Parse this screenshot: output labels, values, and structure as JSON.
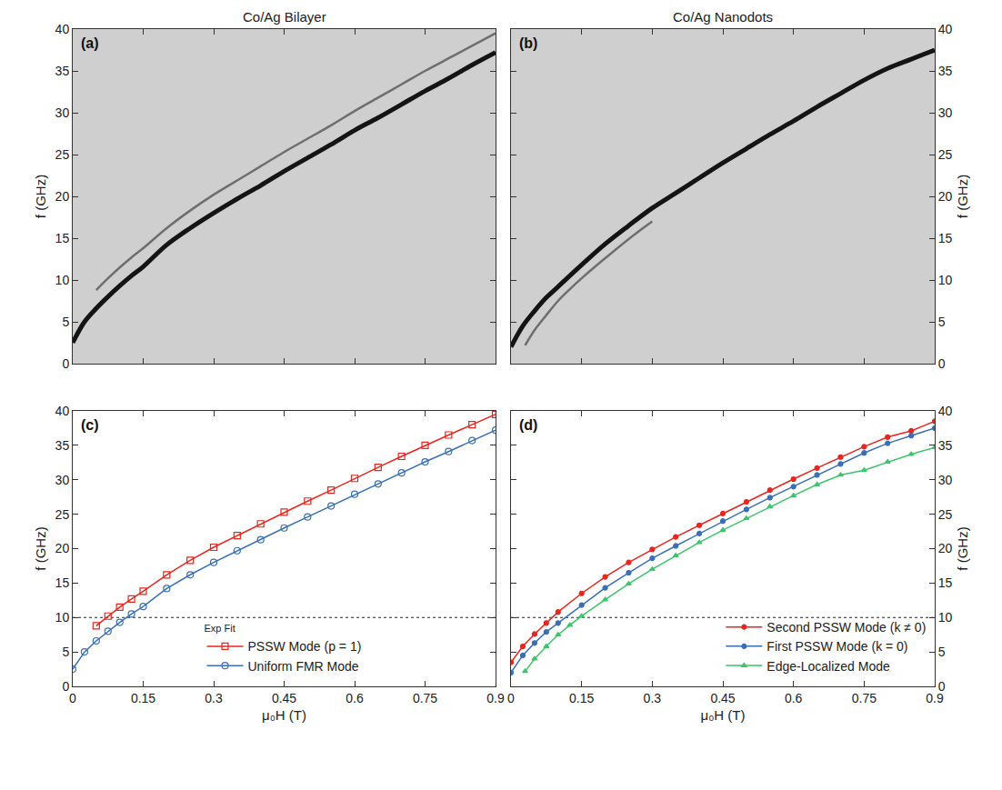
{
  "chart_data": [
    {
      "type": "line",
      "panel": "(a)",
      "title": "Co/Ag Bilayer",
      "ylabel": "f (GHz)",
      "xlim": [
        0,
        0.9
      ],
      "xticks": [
        0,
        0.15,
        0.3,
        0.45,
        0.6,
        0.75,
        0.9
      ],
      "ylim": [
        0,
        40
      ],
      "yticks": [
        0,
        5,
        10,
        15,
        20,
        25,
        30,
        35,
        40
      ],
      "tick_labels": "y",
      "series": [
        {
          "color": "#6e6e6e",
          "line_style": "solid",
          "x": [
            0.05,
            0.075,
            0.1,
            0.125,
            0.15,
            0.2,
            0.25,
            0.3,
            0.35,
            0.4,
            0.45,
            0.5,
            0.55,
            0.6,
            0.65,
            0.7,
            0.75,
            0.8,
            0.85,
            0.9
          ],
          "values": [
            8.8,
            10.2,
            11.5,
            12.7,
            13.8,
            16.2,
            18.3,
            20.2,
            21.9,
            23.6,
            25.3,
            26.9,
            28.5,
            30.2,
            31.8,
            33.4,
            35.0,
            36.5,
            38.0,
            39.5
          ]
        },
        {
          "color": "#141414",
          "line_style": "solid",
          "x": [
            0,
            0.025,
            0.05,
            0.075,
            0.1,
            0.125,
            0.15,
            0.2,
            0.25,
            0.3,
            0.35,
            0.4,
            0.45,
            0.5,
            0.55,
            0.6,
            0.65,
            0.7,
            0.75,
            0.8,
            0.85,
            0.9
          ],
          "values": [
            2.5,
            5.0,
            6.6,
            8.0,
            9.3,
            10.5,
            11.6,
            14.2,
            16.2,
            18.0,
            19.7,
            21.3,
            23.0,
            24.6,
            26.2,
            27.9,
            29.4,
            31.0,
            32.6,
            34.1,
            35.7,
            37.2
          ]
        }
      ]
    },
    {
      "type": "line",
      "panel": "(b)",
      "title": "Co/Ag Nanodots",
      "ylabel": "f (GHz)",
      "xlim": [
        0,
        0.9
      ],
      "xticks": [
        0,
        0.15,
        0.3,
        0.45,
        0.6,
        0.75,
        0.9
      ],
      "ylim": [
        0,
        40
      ],
      "yticks": [
        0,
        5,
        10,
        15,
        20,
        25,
        30,
        35,
        40
      ],
      "tick_labels": "y",
      "series": [
        {
          "color": "#6e6e6e",
          "line_style": "solid",
          "x": [
            0.03,
            0.05,
            0.075,
            0.1,
            0.125,
            0.15,
            0.2,
            0.25,
            0.3
          ],
          "values": [
            2.2,
            4.0,
            5.8,
            7.5,
            8.9,
            10.2,
            12.6,
            14.9,
            17.0
          ]
        },
        {
          "color": "#141414",
          "line_style": "solid",
          "x": [
            0,
            0.025,
            0.05,
            0.075,
            0.1,
            0.15,
            0.2,
            0.25,
            0.3,
            0.35,
            0.4,
            0.45,
            0.5,
            0.55,
            0.6,
            0.65,
            0.7,
            0.75,
            0.8,
            0.85,
            0.9
          ],
          "values": [
            2.0,
            4.5,
            6.3,
            7.9,
            9.2,
            11.8,
            14.3,
            16.5,
            18.6,
            20.4,
            22.2,
            24.0,
            25.7,
            27.4,
            29.0,
            30.7,
            32.3,
            33.9,
            35.3,
            36.4,
            37.5
          ]
        }
      ]
    },
    {
      "type": "line",
      "panel": "(c)",
      "xlabel": "μ₀H (T)",
      "ylabel": "f (GHz)",
      "xlim": [
        0,
        0.9
      ],
      "xticks": [
        0,
        0.15,
        0.3,
        0.45,
        0.6,
        0.75,
        0.9
      ],
      "ylim": [
        0,
        40
      ],
      "yticks": [
        0,
        5,
        10,
        15,
        20,
        25,
        30,
        35,
        40
      ],
      "reference_line": {
        "y": 10,
        "line_style": "dot"
      },
      "legend": "lower center",
      "legend_title": "Exp Fit",
      "series": [
        {
          "name": "PSSW Mode (p = 1)",
          "color": "#e8261f",
          "marker": "square-open",
          "line_style": "solid",
          "x": [
            0.05,
            0.075,
            0.1,
            0.125,
            0.15,
            0.2,
            0.25,
            0.3,
            0.35,
            0.4,
            0.45,
            0.5,
            0.55,
            0.6,
            0.65,
            0.7,
            0.75,
            0.8,
            0.85,
            0.9
          ],
          "values": [
            8.8,
            10.2,
            11.5,
            12.7,
            13.8,
            16.2,
            18.3,
            20.2,
            21.9,
            23.6,
            25.3,
            26.9,
            28.5,
            30.2,
            31.8,
            33.4,
            35.0,
            36.5,
            38.0,
            39.5
          ]
        },
        {
          "name": "Uniform FMR Mode",
          "color": "#3a6fb5",
          "marker": "circle-open",
          "line_style": "solid",
          "x": [
            0,
            0.025,
            0.05,
            0.075,
            0.1,
            0.125,
            0.15,
            0.2,
            0.25,
            0.3,
            0.35,
            0.4,
            0.45,
            0.5,
            0.55,
            0.6,
            0.65,
            0.7,
            0.75,
            0.8,
            0.85,
            0.9
          ],
          "values": [
            2.5,
            5.0,
            6.6,
            8.0,
            9.3,
            10.5,
            11.6,
            14.2,
            16.2,
            18.0,
            19.7,
            21.3,
            23.0,
            24.6,
            26.2,
            27.9,
            29.4,
            31.0,
            32.6,
            34.1,
            35.7,
            37.2
          ]
        }
      ]
    },
    {
      "type": "line",
      "panel": "(d)",
      "xlabel": "μ₀H (T)",
      "ylabel": "f (GHz)",
      "xlim": [
        0,
        0.9
      ],
      "xticks": [
        0,
        0.15,
        0.3,
        0.45,
        0.6,
        0.75,
        0.9
      ],
      "ylim": [
        0,
        40
      ],
      "yticks": [
        0,
        5,
        10,
        15,
        20,
        25,
        30,
        35,
        40
      ],
      "reference_line": {
        "y": 10,
        "line_style": "dot"
      },
      "legend": "lower right",
      "series": [
        {
          "name": "Second PSSW Mode (k ≠ 0)",
          "color": "#e8261f",
          "marker": "circle",
          "line_style": "solid",
          "x": [
            0,
            0.025,
            0.05,
            0.075,
            0.1,
            0.15,
            0.2,
            0.25,
            0.3,
            0.35,
            0.4,
            0.45,
            0.5,
            0.55,
            0.6,
            0.65,
            0.7,
            0.75,
            0.8,
            0.85,
            0.9
          ],
          "values": [
            3.5,
            5.8,
            7.6,
            9.2,
            10.8,
            13.5,
            15.9,
            18.0,
            19.9,
            21.7,
            23.4,
            25.1,
            26.8,
            28.5,
            30.1,
            31.7,
            33.3,
            34.8,
            36.2,
            37.1,
            38.5
          ]
        },
        {
          "name": "First PSSW Mode (k = 0)",
          "color": "#3a6fb5",
          "marker": "circle",
          "line_style": "solid",
          "x": [
            0,
            0.025,
            0.05,
            0.075,
            0.1,
            0.15,
            0.2,
            0.25,
            0.3,
            0.35,
            0.4,
            0.45,
            0.5,
            0.55,
            0.6,
            0.65,
            0.7,
            0.75,
            0.8,
            0.85,
            0.9
          ],
          "values": [
            2.0,
            4.5,
            6.3,
            7.9,
            9.2,
            11.8,
            14.3,
            16.5,
            18.6,
            20.4,
            22.2,
            24.0,
            25.7,
            27.4,
            29.0,
            30.7,
            32.3,
            33.9,
            35.3,
            36.4,
            37.5
          ]
        },
        {
          "name": "Edge-Localized Mode",
          "color": "#3cc56b",
          "marker": "triangle-up",
          "line_style": "solid",
          "x": [
            0.03,
            0.05,
            0.075,
            0.1,
            0.125,
            0.15,
            0.2,
            0.25,
            0.3,
            0.35,
            0.4,
            0.45,
            0.5,
            0.55,
            0.6,
            0.65,
            0.7,
            0.75,
            0.8,
            0.85,
            0.9
          ],
          "values": [
            2.2,
            4.0,
            5.8,
            7.5,
            8.9,
            10.2,
            12.6,
            14.9,
            17.0,
            19.0,
            20.9,
            22.7,
            24.4,
            26.1,
            27.7,
            29.3,
            30.7,
            31.4,
            32.6,
            33.7,
            34.7
          ]
        }
      ]
    }
  ]
}
